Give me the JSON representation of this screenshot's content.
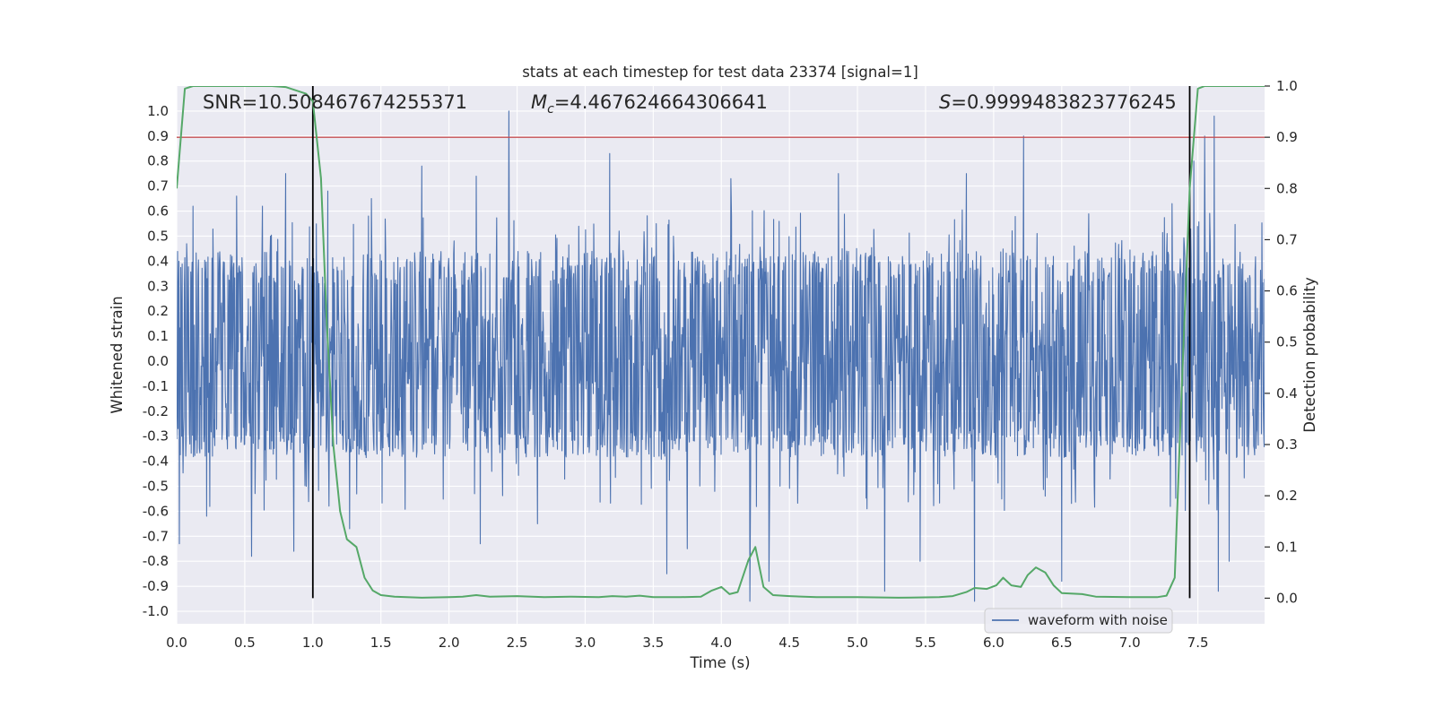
{
  "chart_data": {
    "type": "line",
    "title": "stats at each timestep for test data 23374 [signal=1]",
    "xlabel": "Time (s)",
    "ylabel_left": "Whitened strain",
    "ylabel_right": "Detection probability",
    "xlim": [
      0.0,
      7.99
    ],
    "ylim_left": [
      -1.05,
      1.1
    ],
    "ylim_right": [
      -0.05,
      1.0
    ],
    "x_ticks": [
      "0.0",
      "0.5",
      "1.0",
      "1.5",
      "2.0",
      "2.5",
      "3.0",
      "3.5",
      "4.0",
      "4.5",
      "5.0",
      "5.5",
      "6.0",
      "6.5",
      "7.0",
      "7.5"
    ],
    "y_left_ticks": [
      "1.0",
      "0.9",
      "0.8",
      "0.7",
      "0.6",
      "0.5",
      "0.4",
      "0.3",
      "0.2",
      "0.1",
      "0.0",
      "-0.1",
      "-0.2",
      "-0.3",
      "-0.4",
      "-0.5",
      "-0.6",
      "-0.7",
      "-0.8",
      "-0.9",
      "-1.0"
    ],
    "y_right_ticks": [
      "1.0",
      "0.9",
      "0.8",
      "0.7",
      "0.6",
      "0.5",
      "0.4",
      "0.3",
      "0.2",
      "0.1",
      "0.0"
    ],
    "annotations": {
      "snr": "SNR=10.508467674255371",
      "mc_sym": "M",
      "mc_sub": "c",
      "mc_val": "=4.467624664306641",
      "s_sym": "S",
      "s_val": "=0.9999483823776245"
    },
    "threshold": 0.9,
    "vertical_lines": [
      1.0,
      7.44
    ],
    "waveform": {
      "name": "waveform with noise",
      "color": "#4c72b0",
      "typical_range": [
        -0.35,
        0.4
      ],
      "peaks": [
        {
          "t": 0.02,
          "v": -0.73
        },
        {
          "t": 0.12,
          "v": 0.62
        },
        {
          "t": 0.22,
          "v": -0.62
        },
        {
          "t": 0.44,
          "v": 0.66
        },
        {
          "t": 0.55,
          "v": -0.78
        },
        {
          "t": 0.63,
          "v": 0.62
        },
        {
          "t": 0.8,
          "v": 0.75
        },
        {
          "t": 0.86,
          "v": -0.76
        },
        {
          "t": 1.11,
          "v": 0.68
        },
        {
          "t": 1.27,
          "v": -0.67
        },
        {
          "t": 1.43,
          "v": 0.65
        },
        {
          "t": 1.8,
          "v": 0.78
        },
        {
          "t": 2.2,
          "v": 0.74
        },
        {
          "t": 2.23,
          "v": -0.73
        },
        {
          "t": 2.44,
          "v": 1.0
        },
        {
          "t": 2.65,
          "v": -0.65
        },
        {
          "t": 3.18,
          "v": 0.83
        },
        {
          "t": 3.6,
          "v": -0.85
        },
        {
          "t": 3.75,
          "v": -0.75
        },
        {
          "t": 4.07,
          "v": 0.73
        },
        {
          "t": 4.21,
          "v": -0.96
        },
        {
          "t": 4.35,
          "v": -0.88
        },
        {
          "t": 4.86,
          "v": 0.75
        },
        {
          "t": 5.2,
          "v": -0.92
        },
        {
          "t": 5.46,
          "v": -0.8
        },
        {
          "t": 5.8,
          "v": 0.75
        },
        {
          "t": 5.86,
          "v": -0.96
        },
        {
          "t": 6.22,
          "v": 0.9
        },
        {
          "t": 6.5,
          "v": -0.88
        },
        {
          "t": 7.31,
          "v": 0.63
        },
        {
          "t": 7.47,
          "v": 0.8
        },
        {
          "t": 7.55,
          "v": 0.9
        },
        {
          "t": 7.62,
          "v": 0.98
        },
        {
          "t": 7.65,
          "v": -0.92
        },
        {
          "t": 7.73,
          "v": -0.8
        }
      ]
    },
    "probability": {
      "color": "#55a868",
      "points": [
        [
          0.0,
          0.8
        ],
        [
          0.06,
          0.995
        ],
        [
          0.12,
          1.0
        ],
        [
          0.3,
          1.0
        ],
        [
          0.5,
          1.0
        ],
        [
          0.7,
          1.0
        ],
        [
          0.8,
          0.998
        ],
        [
          0.95,
          0.985
        ],
        [
          1.0,
          0.97
        ],
        [
          1.06,
          0.82
        ],
        [
          1.1,
          0.55
        ],
        [
          1.15,
          0.3
        ],
        [
          1.2,
          0.17
        ],
        [
          1.25,
          0.115
        ],
        [
          1.32,
          0.1
        ],
        [
          1.38,
          0.04
        ],
        [
          1.44,
          0.015
        ],
        [
          1.5,
          0.006
        ],
        [
          1.6,
          0.003
        ],
        [
          1.8,
          0.001
        ],
        [
          2.0,
          0.002
        ],
        [
          2.1,
          0.003
        ],
        [
          2.2,
          0.006
        ],
        [
          2.3,
          0.003
        ],
        [
          2.5,
          0.004
        ],
        [
          2.7,
          0.002
        ],
        [
          2.9,
          0.003
        ],
        [
          3.1,
          0.002
        ],
        [
          3.2,
          0.004
        ],
        [
          3.3,
          0.003
        ],
        [
          3.4,
          0.005
        ],
        [
          3.5,
          0.002
        ],
        [
          3.7,
          0.002
        ],
        [
          3.85,
          0.003
        ],
        [
          3.93,
          0.015
        ],
        [
          4.0,
          0.022
        ],
        [
          4.06,
          0.008
        ],
        [
          4.12,
          0.012
        ],
        [
          4.2,
          0.075
        ],
        [
          4.25,
          0.1
        ],
        [
          4.31,
          0.022
        ],
        [
          4.38,
          0.006
        ],
        [
          4.5,
          0.004
        ],
        [
          4.7,
          0.002
        ],
        [
          5.0,
          0.002
        ],
        [
          5.3,
          0.001
        ],
        [
          5.6,
          0.002
        ],
        [
          5.7,
          0.004
        ],
        [
          5.8,
          0.012
        ],
        [
          5.86,
          0.02
        ],
        [
          5.95,
          0.018
        ],
        [
          6.02,
          0.025
        ],
        [
          6.07,
          0.04
        ],
        [
          6.13,
          0.025
        ],
        [
          6.2,
          0.022
        ],
        [
          6.25,
          0.045
        ],
        [
          6.31,
          0.06
        ],
        [
          6.38,
          0.05
        ],
        [
          6.44,
          0.025
        ],
        [
          6.5,
          0.01
        ],
        [
          6.65,
          0.008
        ],
        [
          6.75,
          0.003
        ],
        [
          7.0,
          0.002
        ],
        [
          7.2,
          0.002
        ],
        [
          7.27,
          0.005
        ],
        [
          7.33,
          0.04
        ],
        [
          7.38,
          0.4
        ],
        [
          7.44,
          0.8
        ],
        [
          7.5,
          0.995
        ],
        [
          7.55,
          1.0
        ],
        [
          7.7,
          1.0
        ],
        [
          7.99,
          1.0
        ]
      ]
    },
    "legend": {
      "label": "waveform with noise",
      "location": "lower-right"
    }
  },
  "colors": {
    "background": "#eaeaf2",
    "grid": "#ffffff",
    "waveform": "#4c72b0",
    "probability": "#55a868",
    "threshold": "#c44e52",
    "vlines": "#000000"
  }
}
